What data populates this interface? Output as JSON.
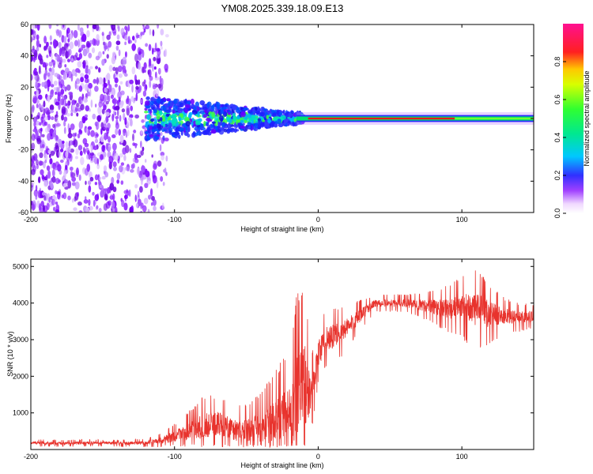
{
  "chart_data": [
    {
      "type": "heatmap",
      "title": "YM08.2025.339.18.09.E13",
      "xlabel": "Height of straight line (km)",
      "ylabel": "Frequency (Hz)",
      "xlim": [
        -200,
        150
      ],
      "ylim": [
        -60,
        60
      ],
      "xticks": [
        -200,
        -100,
        0,
        100
      ],
      "xtick_labels": [
        "-200",
        "-100",
        "0",
        "100"
      ],
      "yticks": [
        -60,
        -40,
        -20,
        0,
        20,
        40,
        60
      ],
      "ytick_labels": [
        "-60",
        "-40",
        "-20",
        "0",
        "20",
        "40",
        "60"
      ],
      "colorbar": {
        "label": "Normalized spectral amplitude",
        "range": [
          0,
          1
        ],
        "ticks": [
          0,
          0.2,
          0.4,
          0.6,
          0.8
        ],
        "tick_labels": [
          "0.0",
          "0.2",
          "0.4",
          "0.6",
          "0.8"
        ],
        "colormap": "rainbow (white to magenta)"
      },
      "features": {
        "noise_region_x": [
          -200,
          -105
        ],
        "transition_band_x": [
          -120,
          -10
        ],
        "signal_line_x": [
          -15,
          150
        ],
        "signal_frequency_hz": 0
      }
    },
    {
      "type": "line",
      "xlabel": "Height of straight line (km)",
      "ylabel": "SNR (10 * v/v)",
      "xlim": [
        -200,
        150
      ],
      "ylim": [
        0,
        5200
      ],
      "xticks": [
        -200,
        -100,
        0,
        100
      ],
      "xtick_labels": [
        "-200",
        "-100",
        "0",
        "100"
      ],
      "yticks": [
        1000,
        2000,
        3000,
        4000,
        5000
      ],
      "ytick_labels": [
        "1000",
        "2000",
        "3000",
        "4000",
        "5000"
      ],
      "series": [
        {
          "name": "SNR",
          "color": "#e8332d",
          "x": [
            -200,
            -180,
            -160,
            -140,
            -120,
            -110,
            -100,
            -90,
            -80,
            -70,
            -60,
            -50,
            -40,
            -30,
            -20,
            -15,
            -10,
            -5,
            0,
            5,
            10,
            20,
            30,
            40,
            50,
            60,
            70,
            80,
            90,
            100,
            110,
            120,
            130,
            140,
            150
          ],
          "mean": [
            180,
            170,
            180,
            175,
            180,
            250,
            350,
            500,
            650,
            700,
            550,
            500,
            600,
            700,
            900,
            1500,
            1800,
            1500,
            2600,
            3000,
            3100,
            3300,
            3700,
            4000,
            4000,
            4000,
            3950,
            3900,
            3850,
            3900,
            3800,
            3700,
            3650,
            3600,
            3650
          ],
          "spread": [
            60,
            60,
            60,
            60,
            70,
            120,
            220,
            350,
            500,
            500,
            450,
            450,
            600,
            900,
            1200,
            1700,
            1800,
            700,
            500,
            500,
            500,
            400,
            250,
            150,
            150,
            150,
            200,
            300,
            400,
            550,
            700,
            500,
            300,
            250,
            200
          ]
        }
      ]
    }
  ]
}
